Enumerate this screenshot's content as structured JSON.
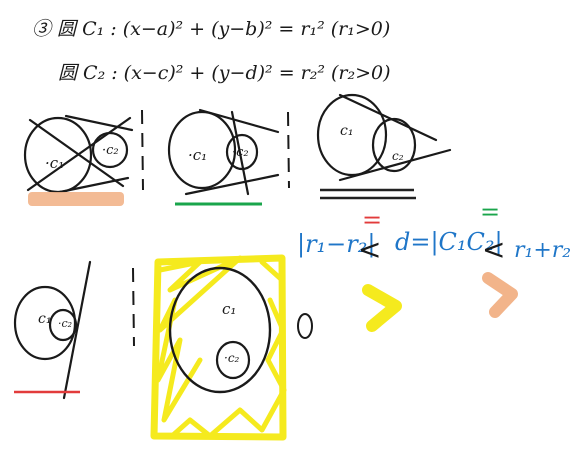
{
  "equations": {
    "circle1": "③ 圆 C₁ : (x−a)² + (y−b)² = r₁² (r₁>0)",
    "circle2": "圆 C₂ : (x−c)² + (y−d)² = r₂² (r₂>0)"
  },
  "labels": {
    "c1_a": "·c₁",
    "c2_a": "·c₂",
    "c1_b": "·c₁",
    "c2_b": "·c₂",
    "c1_c": "c₁",
    "c2_c": "c₂",
    "c1_d": "c₁",
    "c2_d": "·c₂",
    "c1_e": "c₁",
    "c2_e": "·c₂",
    "small_circle": "0"
  },
  "inequality": {
    "left_abs": "|r₁−r₂|",
    "less1": "<",
    "middle": "d=|C₁C₂|",
    "less2": "<",
    "right_sum": "r₁+r₂",
    "eq1": "=",
    "eq2": "="
  },
  "colors": {
    "ink": "#1a1a1a",
    "blue": "#1f76c8",
    "red": "#e23b3b",
    "green": "#1aa54b",
    "orange_hl": "#f2b48a",
    "yellow_hl": "#f5ea1e",
    "dark_underline": "#222222"
  }
}
